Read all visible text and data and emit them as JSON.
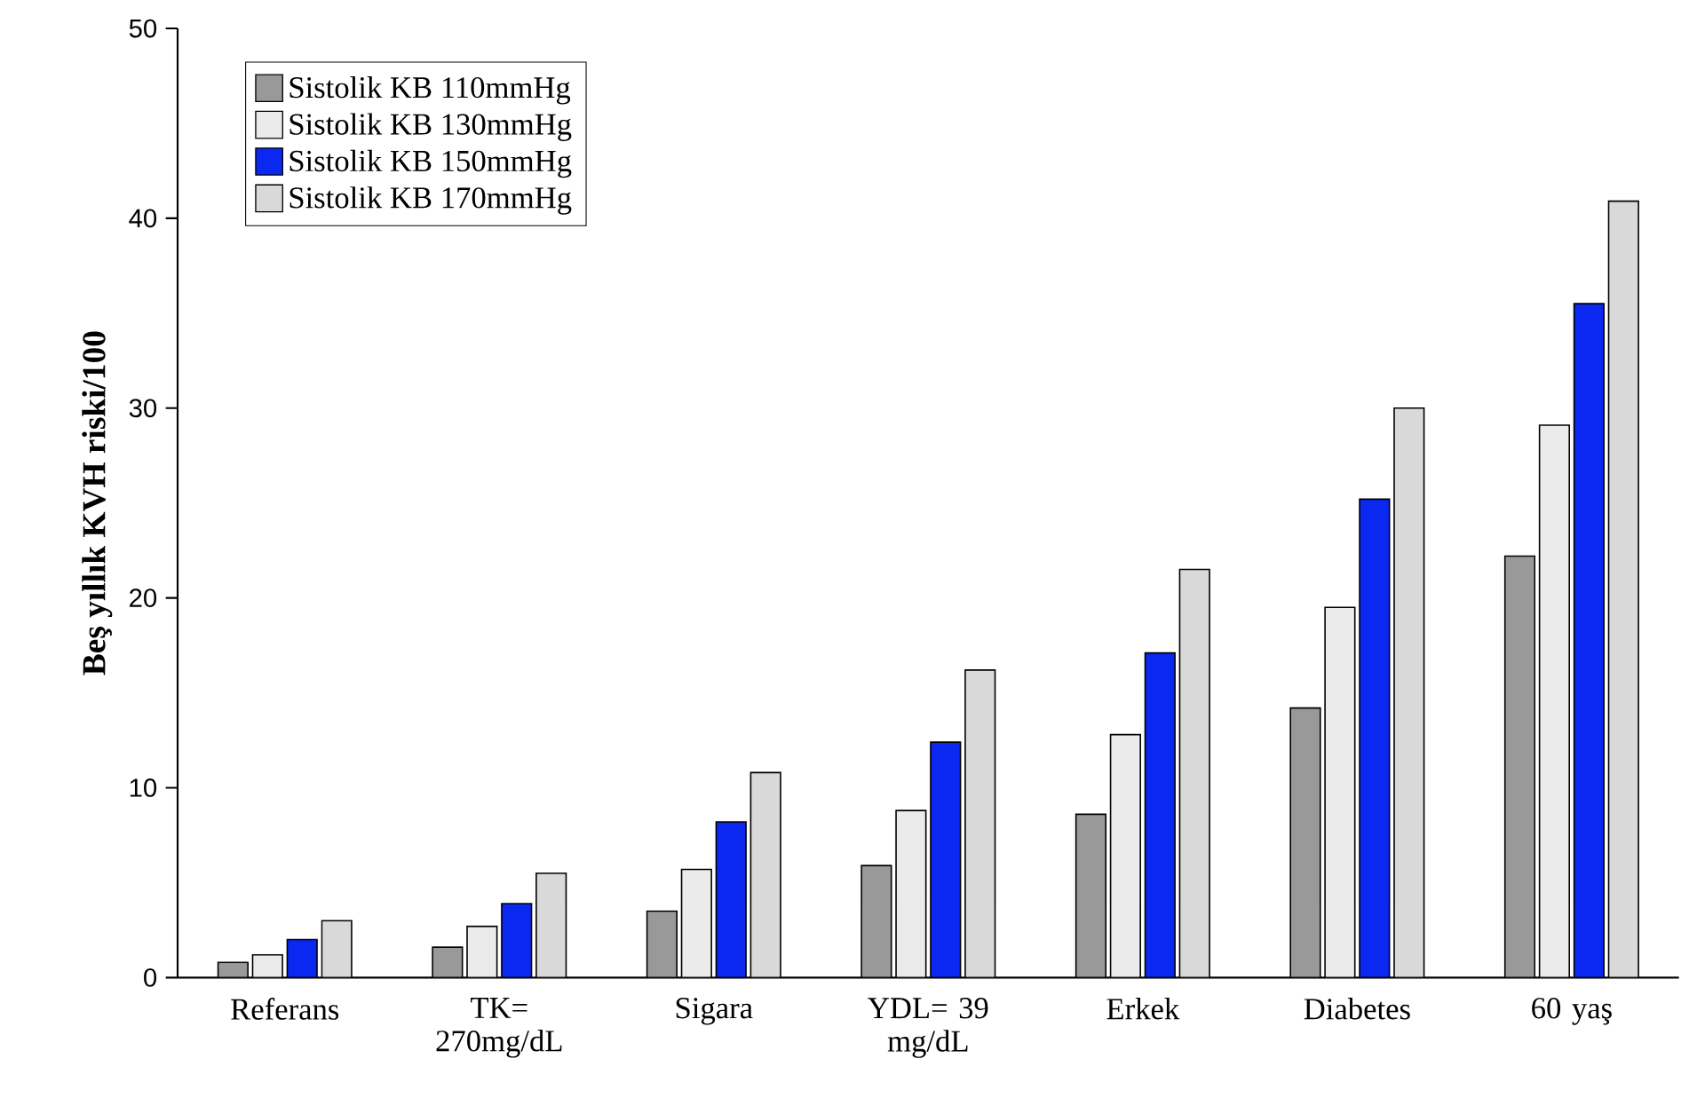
{
  "chart_data": {
    "type": "bar",
    "ylabel": "Beş yıllık KVH riski/100",
    "categories": [
      "Referans",
      "TK= 270mg/dL",
      "Sigara",
      "YDL= 39 mg/dL",
      "Erkek",
      "Diabetes",
      "60 yaş"
    ],
    "series": [
      {
        "name": "Sistolik KB 110mmHg",
        "color": "#999999",
        "values": [
          0.8,
          1.6,
          3.5,
          5.9,
          8.6,
          14.2,
          22.2
        ]
      },
      {
        "name": "Sistolik KB 130mmHg",
        "color": "#ebebeb",
        "values": [
          1.2,
          2.7,
          5.7,
          8.8,
          12.8,
          19.5,
          29.1
        ]
      },
      {
        "name": "Sistolik KB 150mmHg",
        "color": "#0a28f0",
        "values": [
          2.0,
          3.9,
          8.2,
          12.4,
          17.1,
          25.2,
          35.5
        ]
      },
      {
        "name": "Sistolik KB 170mmHg",
        "color": "#d9d9d9",
        "values": [
          3.0,
          5.5,
          10.8,
          16.2,
          21.5,
          30.0,
          40.9
        ]
      }
    ],
    "ylim": [
      0,
      50
    ],
    "yticks": [
      0,
      10,
      20,
      30,
      40,
      50
    ],
    "legend": "top left"
  }
}
